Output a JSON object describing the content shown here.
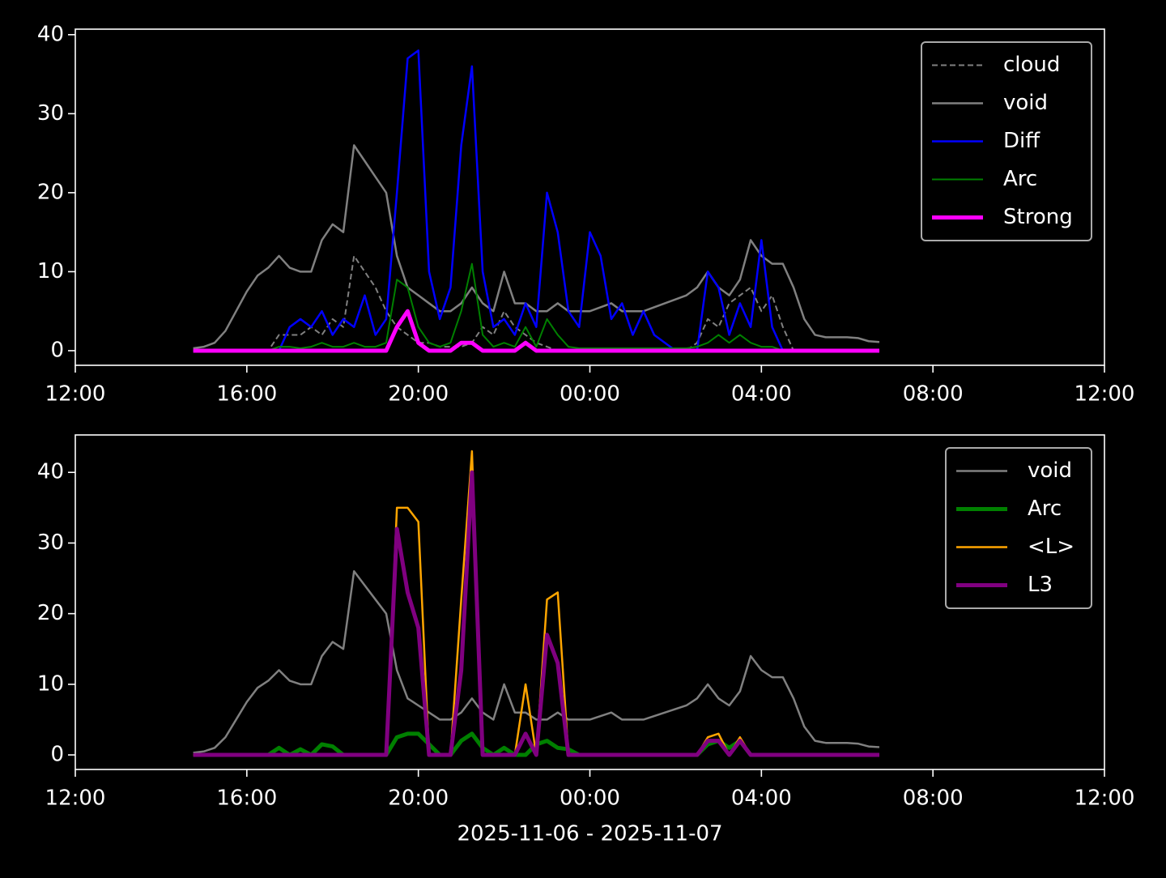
{
  "chart_data": [
    {
      "type": "line",
      "legend": "upper right",
      "x": [
        2.75,
        3,
        3.25,
        3.5,
        3.75,
        4,
        4.25,
        4.5,
        4.75,
        5,
        5.25,
        5.5,
        5.75,
        6,
        6.25,
        6.5,
        6.75,
        7,
        7.25,
        7.5,
        7.75,
        8,
        8.25,
        8.5,
        8.75,
        9,
        9.25,
        9.5,
        9.75,
        10,
        10.25,
        10.5,
        10.75,
        11,
        11.25,
        11.5,
        11.75,
        12,
        12.25,
        12.5,
        12.75,
        13,
        13.25,
        13.5,
        13.75,
        14,
        14.25,
        14.5,
        14.75,
        15,
        15.25,
        15.5,
        15.75,
        16,
        16.25,
        16.5,
        16.75,
        17,
        17.25,
        17.5,
        17.75,
        18,
        18.25,
        18.5,
        18.75
      ],
      "xlim": [
        0,
        24
      ],
      "xticks": [
        {
          "value": 0,
          "label": "12:00"
        },
        {
          "value": 4,
          "label": "16:00"
        },
        {
          "value": 8,
          "label": "20:00"
        },
        {
          "value": 12,
          "label": "00:00"
        },
        {
          "value": 16,
          "label": "04:00"
        },
        {
          "value": 20,
          "label": "08:00"
        },
        {
          "value": 24,
          "label": "12:00"
        }
      ],
      "ylim": [
        -1.85,
        40.7
      ],
      "yticks": [
        0,
        10,
        20,
        30,
        40
      ],
      "series": [
        {
          "name": "cloud",
          "color": "#808080",
          "width": 2,
          "dash": true,
          "values": [
            0,
            0,
            0,
            0,
            0,
            0,
            0,
            0,
            2,
            2,
            2,
            3,
            2,
            4,
            3,
            12,
            10,
            8,
            5,
            3,
            2,
            1,
            1,
            0.5,
            0.5,
            0.5,
            1,
            3,
            2,
            5,
            3,
            2,
            1,
            0.5,
            0,
            0,
            0,
            0,
            0,
            0,
            0,
            0,
            0,
            0,
            0,
            0,
            0,
            1,
            4,
            3,
            6,
            7,
            8,
            5,
            7,
            3,
            0,
            0,
            0,
            0,
            0,
            0,
            0,
            0,
            0
          ]
        },
        {
          "name": "void",
          "color": "#808080",
          "width": 2.5,
          "values": [
            0.3,
            0.5,
            1,
            2.5,
            5,
            7.5,
            9.5,
            10.5,
            12,
            10.5,
            10,
            10,
            14,
            16,
            15,
            26,
            24,
            22,
            20,
            12,
            8,
            7,
            6,
            5,
            5,
            6,
            8,
            6,
            5,
            10,
            6,
            6,
            5,
            5,
            6,
            5,
            5,
            5,
            5.5,
            6,
            5,
            5,
            5,
            5.5,
            6,
            6.5,
            7,
            8,
            10,
            8,
            7,
            9,
            14,
            12,
            11,
            11,
            8,
            4,
            2,
            1.7,
            1.7,
            1.7,
            1.6,
            1.2,
            1.1
          ]
        },
        {
          "name": "Diff",
          "color": "#0000ff",
          "width": 2.5,
          "values": [
            0,
            0,
            0,
            0,
            0,
            0,
            0,
            0,
            0,
            3,
            4,
            3,
            5,
            2,
            4,
            3,
            7,
            2,
            4,
            20,
            37,
            38,
            10,
            4,
            8,
            26,
            36,
            10,
            3,
            4,
            2,
            6,
            3,
            20,
            15,
            5,
            3,
            15,
            12,
            4,
            6,
            2,
            5,
            2,
            1,
            0,
            0,
            0,
            10,
            8,
            2,
            6,
            3,
            14,
            3,
            0,
            0,
            0,
            0,
            0,
            0,
            0,
            0,
            0,
            0
          ]
        },
        {
          "name": "Arc",
          "color": "#008000",
          "width": 2,
          "values": [
            0,
            0,
            0,
            0,
            0,
            0,
            0,
            0,
            0.5,
            0.5,
            0.3,
            0.5,
            1,
            0.5,
            0.5,
            1,
            0.5,
            0.5,
            1,
            9,
            8,
            3,
            1,
            0.5,
            1,
            5,
            11,
            2,
            0.5,
            1,
            0.5,
            3,
            0.5,
            4,
            2,
            0.5,
            0.3,
            0.3,
            0.3,
            0.3,
            0.3,
            0.3,
            0.3,
            0.3,
            0.3,
            0.3,
            0.3,
            0.5,
            1,
            2,
            1,
            2,
            1,
            0.5,
            0.5,
            0,
            0,
            0,
            0,
            0,
            0,
            0,
            0,
            0,
            0
          ]
        },
        {
          "name": "Strong",
          "color": "#ff00ff",
          "width": 5,
          "values": [
            0,
            0,
            0,
            0,
            0,
            0,
            0,
            0,
            0,
            0,
            0,
            0,
            0,
            0,
            0,
            0,
            0,
            0,
            0,
            3,
            5,
            1,
            0,
            0,
            0,
            1,
            1,
            0,
            0,
            0,
            0,
            1,
            0,
            0,
            0,
            0,
            0,
            0,
            0,
            0,
            0,
            0,
            0,
            0,
            0,
            0,
            0,
            0,
            0,
            0,
            0,
            0,
            0,
            0,
            0,
            0,
            0,
            0,
            0,
            0,
            0,
            0,
            0,
            0,
            0
          ]
        }
      ]
    },
    {
      "type": "line",
      "legend": "upper right",
      "xlabel": "2025-11-06 - 2025-11-07",
      "x": [
        2.75,
        3,
        3.25,
        3.5,
        3.75,
        4,
        4.25,
        4.5,
        4.75,
        5,
        5.25,
        5.5,
        5.75,
        6,
        6.25,
        6.5,
        6.75,
        7,
        7.25,
        7.5,
        7.75,
        8,
        8.25,
        8.5,
        8.75,
        9,
        9.25,
        9.5,
        9.75,
        10,
        10.25,
        10.5,
        10.75,
        11,
        11.25,
        11.5,
        11.75,
        12,
        12.25,
        12.5,
        12.75,
        13,
        13.25,
        13.5,
        13.75,
        14,
        14.25,
        14.5,
        14.75,
        15,
        15.25,
        15.5,
        15.75,
        16,
        16.25,
        16.5,
        16.75,
        17,
        17.25,
        17.5,
        17.75,
        18,
        18.25,
        18.5,
        18.75
      ],
      "xlim": [
        0,
        24
      ],
      "xticks": [
        {
          "value": 0,
          "label": "12:00"
        },
        {
          "value": 4,
          "label": "16:00"
        },
        {
          "value": 8,
          "label": "20:00"
        },
        {
          "value": 12,
          "label": "00:00"
        },
        {
          "value": 16,
          "label": "04:00"
        },
        {
          "value": 20,
          "label": "08:00"
        },
        {
          "value": 24,
          "label": "12:00"
        }
      ],
      "ylim": [
        -2.06,
        45.3
      ],
      "yticks": [
        0,
        10,
        20,
        30,
        40
      ],
      "series": [
        {
          "name": "void",
          "color": "#808080",
          "width": 2.5,
          "values": [
            0.3,
            0.5,
            1,
            2.5,
            5,
            7.5,
            9.5,
            10.5,
            12,
            10.5,
            10,
            10,
            14,
            16,
            15,
            26,
            24,
            22,
            20,
            12,
            8,
            7,
            6,
            5,
            5,
            6,
            8,
            6,
            5,
            10,
            6,
            6,
            5,
            5,
            6,
            5,
            5,
            5,
            5.5,
            6,
            5,
            5,
            5,
            5.5,
            6,
            6.5,
            7,
            8,
            10,
            8,
            7,
            9,
            14,
            12,
            11,
            11,
            8,
            4,
            2,
            1.7,
            1.7,
            1.7,
            1.6,
            1.2,
            1.1
          ]
        },
        {
          "name": "Arc",
          "color": "#008000",
          "width": 5,
          "values": [
            0,
            0,
            0,
            0,
            0,
            0,
            0,
            0,
            1,
            0,
            0.8,
            0,
            1.5,
            1.2,
            0,
            0,
            0,
            0,
            0,
            2.5,
            3,
            3,
            1.5,
            0,
            0,
            2,
            3,
            1,
            0,
            1,
            0,
            0,
            1.5,
            2,
            1,
            0.8,
            0,
            0,
            0,
            0,
            0,
            0,
            0,
            0,
            0,
            0,
            0,
            0,
            1.5,
            2,
            1,
            2,
            0,
            0,
            0,
            0,
            0,
            0,
            0,
            0,
            0,
            0,
            0,
            0,
            0
          ]
        },
        {
          "name": "<L>",
          "color": "#ffa500",
          "width": 2.5,
          "values": [
            0,
            0,
            0,
            0,
            0,
            0,
            0,
            0,
            0,
            0,
            0,
            0,
            0,
            0,
            0,
            0,
            0,
            0,
            0,
            35,
            35,
            33,
            0,
            0,
            0,
            22,
            43,
            0,
            0,
            0,
            0,
            10,
            0,
            22,
            23,
            0,
            0,
            0,
            0,
            0,
            0,
            0,
            0,
            0,
            0,
            0,
            0,
            0,
            2.5,
            3,
            0,
            2.5,
            0,
            0,
            0,
            0,
            0,
            0,
            0,
            0,
            0,
            0,
            0,
            0,
            0
          ]
        },
        {
          "name": "L3",
          "color": "#800080",
          "width": 5,
          "values": [
            0,
            0,
            0,
            0,
            0,
            0,
            0,
            0,
            0,
            0,
            0,
            0,
            0,
            0,
            0,
            0,
            0,
            0,
            0,
            32,
            23,
            18,
            0,
            0,
            0,
            12,
            40,
            0,
            0,
            0,
            0,
            3,
            0,
            17,
            13,
            0,
            0,
            0,
            0,
            0,
            0,
            0,
            0,
            0,
            0,
            0,
            0,
            0,
            2,
            2,
            0,
            2,
            0,
            0,
            0,
            0,
            0,
            0,
            0,
            0,
            0,
            0,
            0,
            0,
            0
          ]
        }
      ]
    }
  ]
}
